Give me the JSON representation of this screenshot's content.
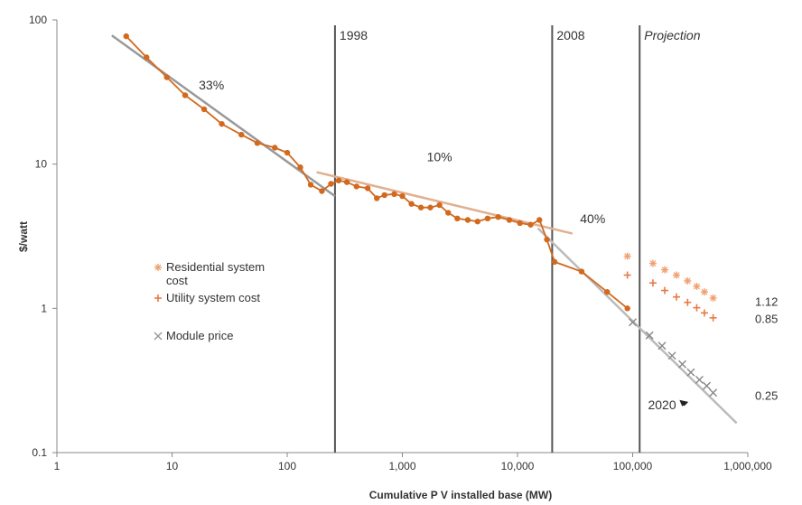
{
  "chart_data": {
    "type": "line",
    "title": "",
    "xlabel": "Cumulative P V installed base (MW)",
    "ylabel": "$/watt",
    "x_scale": "log",
    "y_scale": "log",
    "xlim": [
      1,
      1000000
    ],
    "ylim": [
      0.1,
      100
    ],
    "x_ticks": [
      1,
      10,
      100,
      1000,
      10000,
      100000,
      1000000
    ],
    "x_tick_labels": [
      "1",
      "10",
      "100",
      "1,000",
      "10,000",
      "100,000",
      "1,000,000"
    ],
    "y_ticks": [
      0.1,
      1,
      10,
      100
    ],
    "y_tick_labels": [
      "0.1",
      "1",
      "10",
      "100"
    ],
    "grid": false,
    "legend": "left",
    "colors": {
      "module": "#d2691e",
      "residential": "#f0a070",
      "utility": "#e87a45",
      "trend_gray": "#999999",
      "trend_light": "#e0b090",
      "divider": "#555555"
    },
    "dividers": [
      {
        "x": 260,
        "label": "1998"
      },
      {
        "x": 20000,
        "label": "2008"
      },
      {
        "x": 115000,
        "label": "Projection"
      }
    ],
    "annotations": [
      {
        "text": "33%",
        "x": 22,
        "y": 33
      },
      {
        "text": "10%",
        "x": 2100,
        "y": 10.5
      },
      {
        "text": "40%",
        "x": 45000,
        "y": 3.9
      },
      {
        "text": "2020",
        "x": 180000,
        "y": 0.2
      }
    ],
    "end_labels": [
      {
        "text": "1.12",
        "x": 1000000,
        "y": 1.12
      },
      {
        "text": "0.85",
        "x": 1000000,
        "y": 0.85
      },
      {
        "text": "0.25",
        "x": 1000000,
        "y": 0.25
      }
    ],
    "series": [
      {
        "name": "Module price",
        "kind": "historical",
        "x": [
          4,
          6,
          9,
          13,
          19,
          27,
          40,
          55,
          78,
          100,
          130,
          160,
          200,
          240,
          280,
          330,
          400,
          500,
          600,
          700,
          850,
          1000,
          1200,
          1450,
          1750,
          2100,
          2500,
          3000,
          3700,
          4500,
          5500,
          6800,
          8500,
          10500,
          13000,
          15500,
          18000,
          21000,
          36000,
          60000,
          90000
        ],
        "y": [
          77,
          55,
          40,
          30,
          24,
          19,
          16,
          14,
          13,
          12,
          9.5,
          7.2,
          6.5,
          7.3,
          7.7,
          7.5,
          7.0,
          6.8,
          5.8,
          6.1,
          6.2,
          6.0,
          5.3,
          5.0,
          5.0,
          5.2,
          4.6,
          4.2,
          4.1,
          4.0,
          4.2,
          4.3,
          4.1,
          3.9,
          3.8,
          4.1,
          3.0,
          2.1,
          1.8,
          1.3,
          1.0
        ]
      },
      {
        "name": "Residential system cost",
        "kind": "projection",
        "x": [
          90000,
          150000,
          190000,
          240000,
          300000,
          360000,
          420000,
          500000
        ],
        "y": [
          2.3,
          2.05,
          1.85,
          1.7,
          1.55,
          1.42,
          1.3,
          1.18
        ]
      },
      {
        "name": "Utility system cost",
        "kind": "projection",
        "x": [
          90000,
          150000,
          190000,
          240000,
          300000,
          360000,
          420000,
          500000
        ],
        "y": [
          1.7,
          1.5,
          1.33,
          1.2,
          1.1,
          1.01,
          0.93,
          0.86
        ]
      },
      {
        "name": "Module price",
        "kind": "projection",
        "x": [
          100000,
          140000,
          180000,
          220000,
          270000,
          320000,
          380000,
          440000,
          500000
        ],
        "y": [
          0.8,
          0.65,
          0.55,
          0.47,
          0.41,
          0.36,
          0.32,
          0.29,
          0.26
        ]
      }
    ],
    "trend_lines": [
      {
        "name": "33% trend",
        "x": [
          3,
          260
        ],
        "y": [
          78,
          6.0
        ],
        "color": "#999999"
      },
      {
        "name": "10% trend",
        "x": [
          180,
          30000
        ],
        "y": [
          8.8,
          3.3
        ],
        "color": "#e0b090"
      },
      {
        "name": "40% trend",
        "x": [
          15000,
          800000
        ],
        "y": [
          3.6,
          0.16
        ],
        "color": "#bbbbbb"
      }
    ],
    "legend_entries": [
      {
        "text": "Residential system cost",
        "marker": "star",
        "color": "#f0a070"
      },
      {
        "text": "Utility system cost",
        "marker": "plus",
        "color": "#e87a45"
      },
      {
        "text": "Module price",
        "marker": "x",
        "color": "#999999"
      }
    ],
    "legend_line1": "Residential system",
    "legend_line2": "cost"
  }
}
